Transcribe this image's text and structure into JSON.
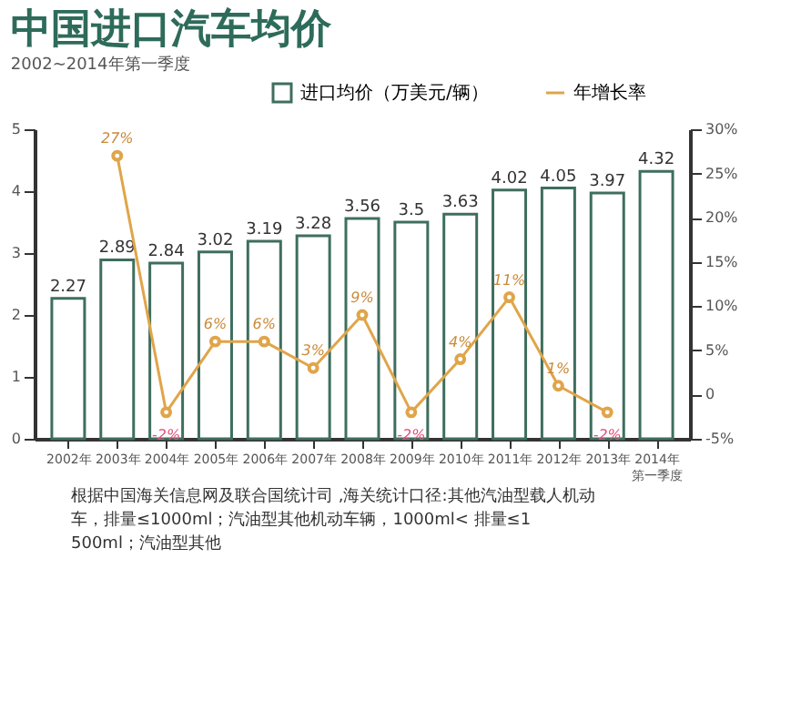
{
  "chart_data": {
    "type": "bar",
    "title": "中国进口汽车均价",
    "subtitle": "2002~2014年第一季度",
    "categories": [
      "2002年",
      "2003年",
      "2004年",
      "2005年",
      "2006年",
      "2007年",
      "2008年",
      "2009年",
      "2010年",
      "2011年",
      "2012年",
      "2013年",
      "2014年第一季度"
    ],
    "series": [
      {
        "name": "进口均价（万美元/辆）",
        "color": "#3f6e5e",
        "values": [
          2.27,
          2.89,
          2.84,
          3.02,
          3.19,
          3.28,
          3.56,
          3.5,
          3.63,
          4.02,
          4.05,
          3.97,
          4.32
        ]
      },
      {
        "name": "年增长率",
        "type": "line",
        "axis": "y2",
        "color": "#e0a54a",
        "values": [
          null,
          27,
          -2,
          6,
          6,
          3,
          9,
          -2,
          4,
          11,
          1,
          -2,
          null
        ],
        "value_labels": [
          null,
          "27%",
          "-2%",
          "6%",
          "6%",
          "3%",
          "9%",
          "-2%",
          "4%",
          "11%",
          "1%",
          "-2%",
          null
        ]
      }
    ],
    "ylim": [
      0,
      5
    ],
    "yticks": [
      0,
      1,
      2,
      3,
      4,
      5
    ],
    "y2lim": [
      -5,
      30
    ],
    "y2ticks": [
      {
        "value": -5,
        "label": "-5%"
      },
      0,
      {
        "value": 5,
        "label": "5%"
      },
      {
        "value": 10,
        "label": "10%"
      },
      {
        "value": 15,
        "label": "15%"
      },
      {
        "value": 20,
        "label": "20%"
      },
      {
        "value": 25,
        "label": "25%"
      },
      {
        "value": 30,
        "label": "30%"
      }
    ],
    "data_labels": true,
    "marker": "circle",
    "legend": "top right",
    "grid": false,
    "annotations": [
      "根据中国海关信息网及联合国统计司 ,海关统计口径:其他汽油型载人机动车，排量≤1000ml；汽油型其他机动车辆，1000ml< 排量≤1500ml；汽油型其他"
    ]
  }
}
